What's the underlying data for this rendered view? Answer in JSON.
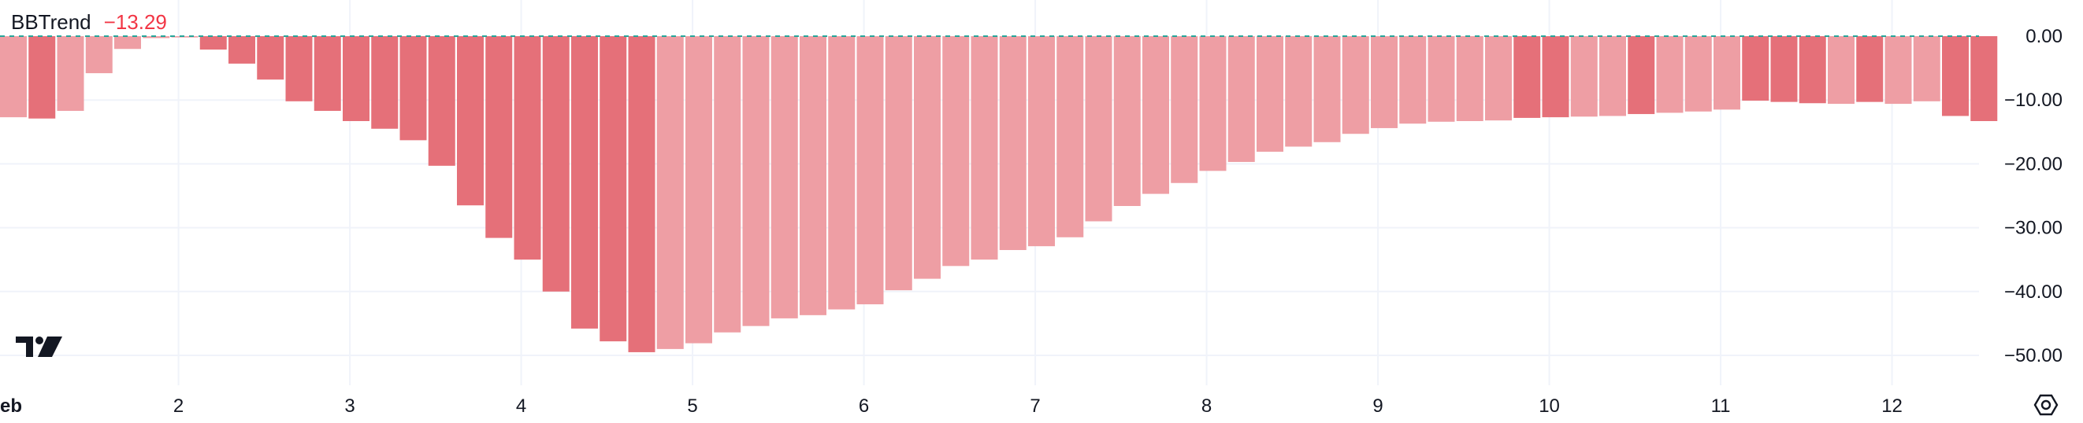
{
  "indicator": {
    "name": "BBTrend",
    "value": "−13.29",
    "value_color": "#f23645"
  },
  "colors": {
    "bar_strong": "#e57079",
    "bar_light": "#ee9ea4",
    "zero_line": "#26a69a",
    "grid": "#f0f3fa",
    "text": "#131722"
  },
  "icons": {
    "logo": "tradingview-logo-icon",
    "settings": "hexagon-settings-icon"
  },
  "chart_data": {
    "type": "bar",
    "title": "",
    "xlabel": "",
    "ylabel": "",
    "ylim": [
      -52.5,
      0
    ],
    "grid": true,
    "y_ticks": [
      0,
      -10,
      -20,
      -30,
      -40,
      -50
    ],
    "y_tick_labels": [
      "0.00",
      "−10.00",
      "−20.00",
      "−30.00",
      "−40.00",
      "−50.00"
    ],
    "x_tick_labels": [
      {
        "label": "eb",
        "at": 0,
        "bold": true
      },
      {
        "label": "2",
        "at": 6.25
      },
      {
        "label": "3",
        "at": 12.25
      },
      {
        "label": "4",
        "at": 18.25
      },
      {
        "label": "5",
        "at": 24.25
      },
      {
        "label": "6",
        "at": 30.25
      },
      {
        "label": "7",
        "at": 36.25
      },
      {
        "label": "8",
        "at": 42.25
      },
      {
        "label": "9",
        "at": 48.25
      },
      {
        "label": "10",
        "at": 54.25
      },
      {
        "label": "11",
        "at": 60.25
      },
      {
        "label": "12",
        "at": 66.25
      }
    ],
    "values": [
      -12.7,
      -12.9,
      -11.7,
      -5.8,
      -2.0,
      -0.3,
      -0.2,
      -2.1,
      -4.3,
      -6.8,
      -10.2,
      -11.7,
      -13.3,
      -14.5,
      -16.3,
      -20.3,
      -26.5,
      -31.6,
      -35.0,
      -40.0,
      -45.8,
      -47.8,
      -49.5,
      -49.0,
      -48.1,
      -46.4,
      -45.4,
      -44.2,
      -43.7,
      -42.8,
      -42.0,
      -39.8,
      -38.0,
      -36.0,
      -35.0,
      -33.5,
      -32.9,
      -31.5,
      -29.0,
      -26.6,
      -24.7,
      -23.0,
      -21.1,
      -19.7,
      -18.1,
      -17.3,
      -16.6,
      -15.3,
      -14.4,
      -13.7,
      -13.4,
      -13.3,
      -13.2,
      -12.8,
      -12.7,
      -12.6,
      -12.5,
      -12.2,
      -12.0,
      -11.8,
      -11.5,
      -10.1,
      -10.3,
      -10.5,
      -10.6,
      -10.3,
      -10.6,
      -10.2,
      -12.5,
      -13.3
    ],
    "strong": [
      0,
      1,
      0,
      0,
      0,
      0,
      0,
      1,
      1,
      1,
      1,
      1,
      1,
      1,
      1,
      1,
      1,
      1,
      1,
      1,
      1,
      1,
      1,
      0,
      0,
      0,
      0,
      0,
      0,
      0,
      0,
      0,
      0,
      0,
      0,
      0,
      0,
      0,
      0,
      0,
      0,
      0,
      0,
      0,
      0,
      0,
      0,
      0,
      0,
      0,
      0,
      0,
      0,
      1,
      1,
      0,
      0,
      1,
      0,
      0,
      0,
      1,
      1,
      1,
      0,
      1,
      0,
      0,
      1,
      1
    ]
  }
}
